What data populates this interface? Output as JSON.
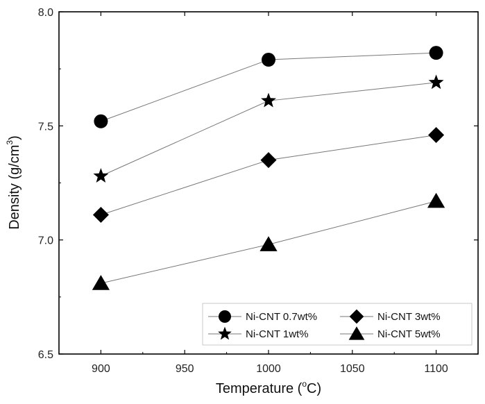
{
  "chart_data": {
    "type": "line",
    "title": "",
    "xlabel": "Temperature (",
    "xlabel_unit": "o",
    "xlabel_suffix": "C)",
    "ylabel": "Density (g/cm",
    "ylabel_unit": "3",
    "ylabel_suffix": ")",
    "x": [
      900,
      1000,
      1100
    ],
    "xlim": [
      875,
      1125
    ],
    "ylim": [
      6.5,
      8.0
    ],
    "xticks": [
      900,
      950,
      1000,
      1050,
      1100
    ],
    "xtick_labels": [
      "900",
      "950",
      "1000",
      "1050",
      "1100"
    ],
    "yticks": [
      6.5,
      7.0,
      7.5,
      8.0
    ],
    "ytick_labels": [
      "6.5",
      "7.0",
      "7.5",
      "8.0"
    ],
    "grid": false,
    "legend_position": "bottom-right",
    "series": [
      {
        "name": "Ni-CNT 0.7wt%",
        "marker": "circle",
        "values": [
          7.52,
          7.79,
          7.82
        ]
      },
      {
        "name": "Ni-CNT 1wt%",
        "marker": "star",
        "values": [
          7.28,
          7.61,
          7.69
        ]
      },
      {
        "name": "Ni-CNT 3wt%",
        "marker": "diamond",
        "values": [
          7.11,
          7.35,
          7.46
        ]
      },
      {
        "name": "Ni-CNT 5wt%",
        "marker": "triangle",
        "values": [
          6.81,
          6.98,
          7.17
        ]
      }
    ],
    "colors": {
      "marker": "#000000",
      "line": "#777777",
      "axis": "#000000"
    }
  }
}
